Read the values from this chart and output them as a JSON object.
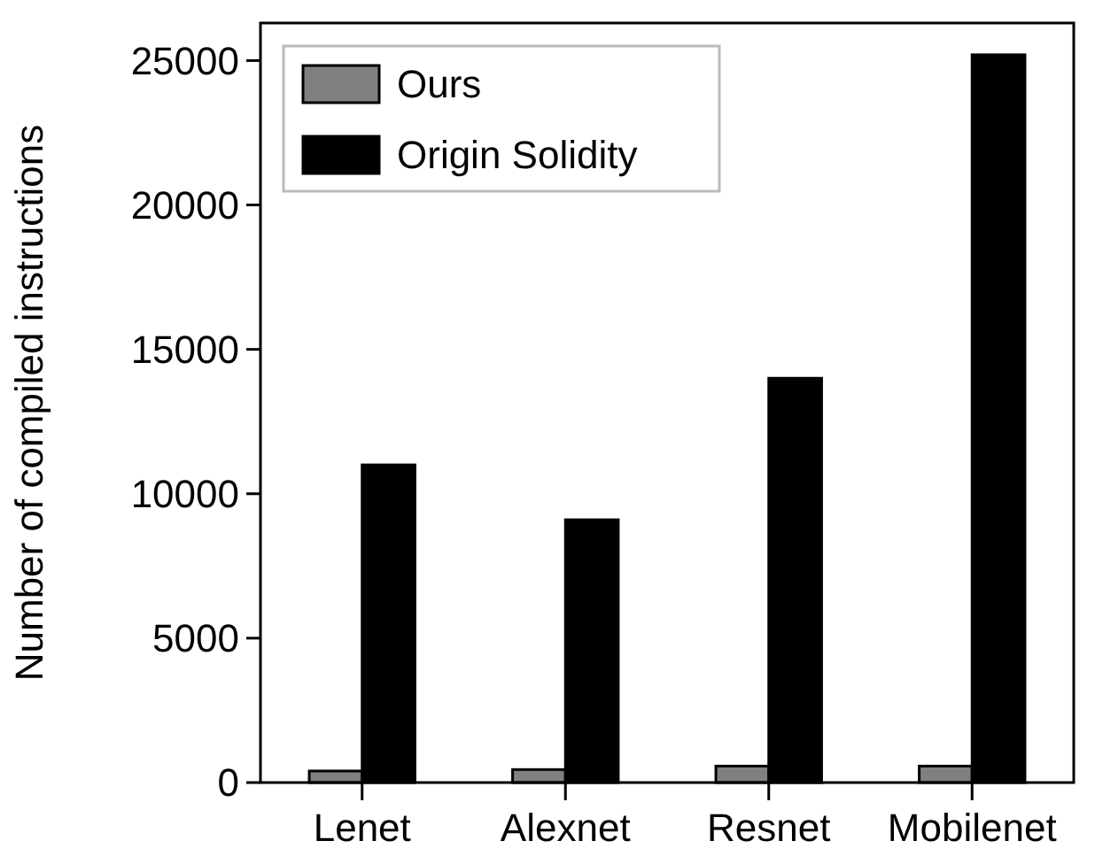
{
  "chart_data": {
    "type": "bar",
    "ylabel": "Number of compiled instructions",
    "categories": [
      "Lenet",
      "Alexnet",
      "Resnet",
      "Mobilenet"
    ],
    "series": [
      {
        "name": "Ours",
        "color": "#808080",
        "values": [
          400,
          450,
          570,
          570
        ]
      },
      {
        "name": "Origin Solidity",
        "color": "#000000",
        "values": [
          11000,
          9100,
          14000,
          25200
        ]
      }
    ],
    "ylim": [
      0,
      26300
    ],
    "yticks": [
      0,
      5000,
      10000,
      15000,
      20000,
      25000
    ],
    "grid": false,
    "legend": "top left"
  }
}
